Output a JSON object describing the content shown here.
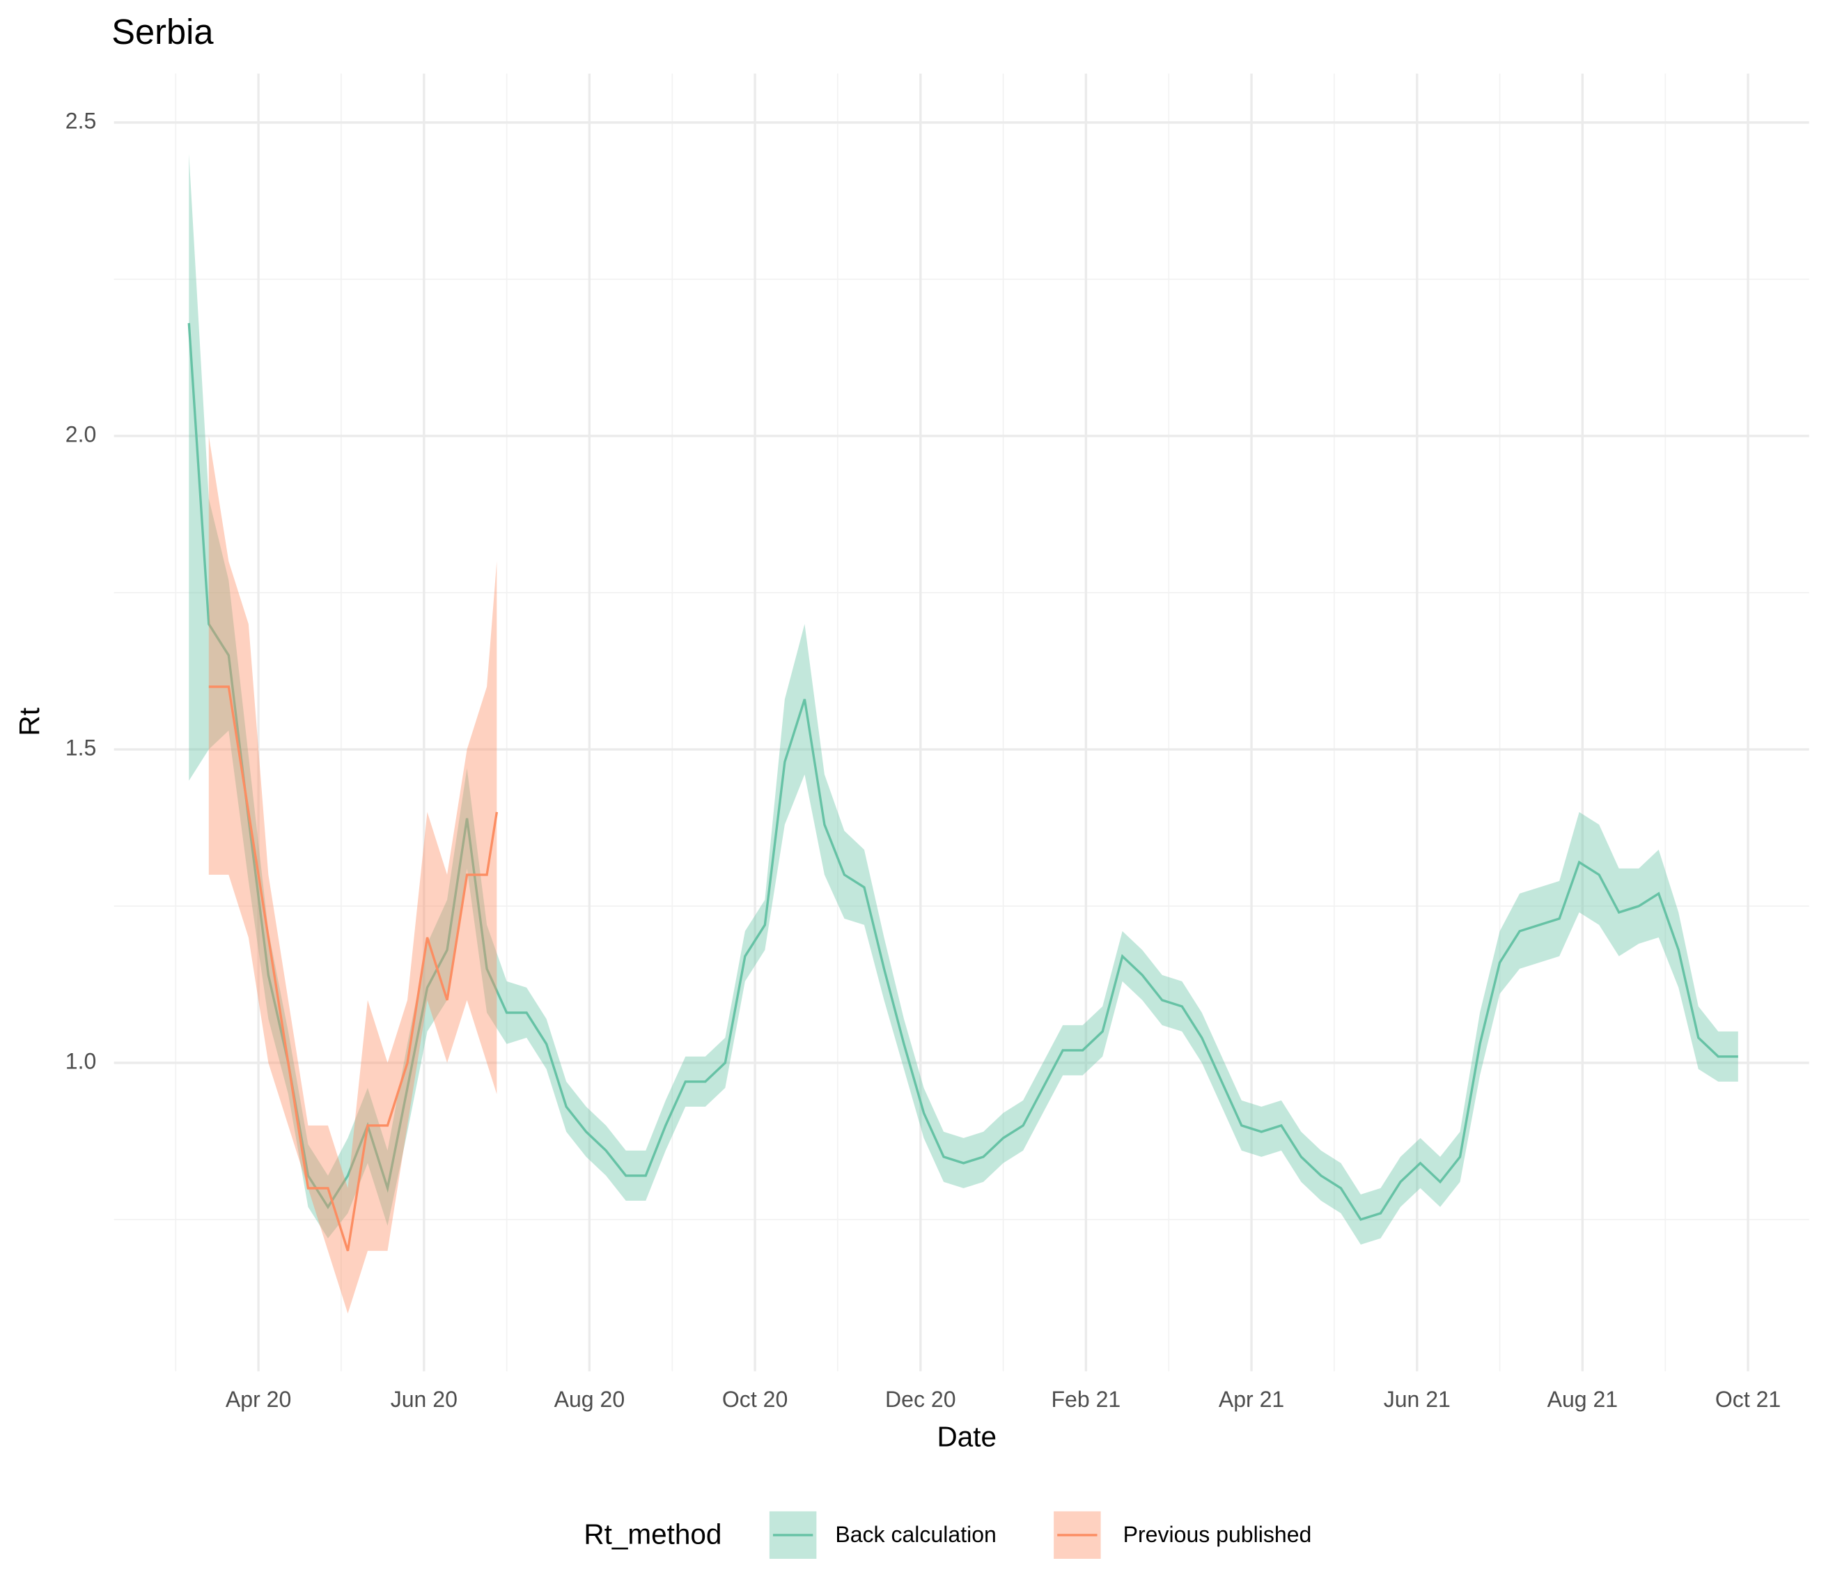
{
  "chart_data": {
    "type": "line",
    "title": "Serbia",
    "x_label": "Date",
    "y_label": "Rt",
    "legend_title": "Rt_method",
    "legend_position": "bottom",
    "grid": true,
    "xlim": [
      2020.1045,
      2021.8115
    ],
    "ylim": [
      0.508,
      2.578
    ],
    "xticks": [
      {
        "value": 2020.25,
        "label": "Apr 20"
      },
      {
        "value": 2020.4167,
        "label": "Jun 20"
      },
      {
        "value": 2020.5833,
        "label": "Aug 20"
      },
      {
        "value": 2020.75,
        "label": "Oct 20"
      },
      {
        "value": 2020.9167,
        "label": "Dec 20"
      },
      {
        "value": 2021.0833,
        "label": "Feb 21"
      },
      {
        "value": 2021.25,
        "label": "Apr 21"
      },
      {
        "value": 2021.4167,
        "label": "Jun 21"
      },
      {
        "value": 2021.5833,
        "label": "Aug 21"
      },
      {
        "value": 2021.75,
        "label": "Oct 21"
      }
    ],
    "minor_xticks": [
      2020.1667,
      2020.3333,
      2020.5,
      2020.6667,
      2020.8333,
      2021.0,
      2021.1667,
      2021.3333,
      2021.5,
      2021.6667
    ],
    "yticks": [
      {
        "value": 1,
        "label": "1.0"
      },
      1.5,
      {
        "value": 2,
        "label": "2.0"
      },
      2.5
    ],
    "minor_yticks": [
      0.75,
      1.25,
      1.75,
      2.25
    ],
    "series": [
      {
        "name": "Back calculation",
        "color": "#66c2a5",
        "x": [
          2020.18,
          2020.2,
          2020.22,
          2020.24,
          2020.26,
          2020.28,
          2020.3,
          2020.32,
          2020.34,
          2020.36,
          2020.38,
          2020.4,
          2020.42,
          2020.44,
          2020.46,
          2020.48,
          2020.5,
          2020.52,
          2020.54,
          2020.56,
          2020.58,
          2020.6,
          2020.62,
          2020.64,
          2020.66,
          2020.68,
          2020.7,
          2020.72,
          2020.74,
          2020.76,
          2020.78,
          2020.8,
          2020.82,
          2020.84,
          2020.86,
          2020.88,
          2020.9,
          2020.92,
          2020.94,
          2020.96,
          2020.98,
          2021.0,
          2021.02,
          2021.04,
          2021.06,
          2021.08,
          2021.1,
          2021.12,
          2021.14,
          2021.16,
          2021.18,
          2021.2,
          2021.22,
          2021.24,
          2021.26,
          2021.28,
          2021.3,
          2021.32,
          2021.34,
          2021.36,
          2021.38,
          2021.4,
          2021.42,
          2021.44,
          2021.46,
          2021.48,
          2021.5,
          2021.52,
          2021.54,
          2021.56,
          2021.58,
          2021.6,
          2021.62,
          2021.64,
          2021.66,
          2021.68,
          2021.7,
          2021.72,
          2021.74
        ],
        "values": [
          2.18,
          1.7,
          1.65,
          1.39,
          1.14,
          1.0,
          0.82,
          0.77,
          0.82,
          0.9,
          0.8,
          0.96,
          1.12,
          1.18,
          1.39,
          1.15,
          1.08,
          1.08,
          1.03,
          0.93,
          0.89,
          0.86,
          0.82,
          0.82,
          0.9,
          0.97,
          0.97,
          1.0,
          1.17,
          1.22,
          1.48,
          1.58,
          1.38,
          1.3,
          1.28,
          1.15,
          1.03,
          0.92,
          0.85,
          0.84,
          0.85,
          0.88,
          0.9,
          0.96,
          1.02,
          1.02,
          1.05,
          1.17,
          1.14,
          1.1,
          1.09,
          1.04,
          0.97,
          0.9,
          0.89,
          0.9,
          0.85,
          0.82,
          0.8,
          0.75,
          0.76,
          0.81,
          0.84,
          0.81,
          0.85,
          1.03,
          1.16,
          1.21,
          1.22,
          1.23,
          1.32,
          1.3,
          1.24,
          1.25,
          1.27,
          1.18,
          1.04,
          1.01,
          1.01
        ],
        "lower": [
          1.45,
          1.5,
          1.53,
          1.29,
          1.07,
          0.95,
          0.77,
          0.72,
          0.76,
          0.84,
          0.74,
          0.89,
          1.05,
          1.1,
          1.31,
          1.08,
          1.03,
          1.04,
          0.99,
          0.89,
          0.85,
          0.82,
          0.78,
          0.78,
          0.86,
          0.93,
          0.93,
          0.96,
          1.13,
          1.18,
          1.38,
          1.46,
          1.3,
          1.23,
          1.22,
          1.1,
          0.99,
          0.88,
          0.81,
          0.8,
          0.81,
          0.84,
          0.86,
          0.92,
          0.98,
          0.98,
          1.01,
          1.13,
          1.1,
          1.06,
          1.05,
          1.0,
          0.93,
          0.86,
          0.85,
          0.86,
          0.81,
          0.78,
          0.76,
          0.71,
          0.72,
          0.77,
          0.8,
          0.77,
          0.81,
          0.98,
          1.11,
          1.15,
          1.16,
          1.17,
          1.24,
          1.22,
          1.17,
          1.19,
          1.2,
          1.12,
          0.99,
          0.97,
          0.97
        ],
        "upper": [
          2.45,
          1.9,
          1.77,
          1.49,
          1.21,
          1.05,
          0.87,
          0.82,
          0.88,
          0.96,
          0.86,
          1.03,
          1.19,
          1.26,
          1.47,
          1.22,
          1.13,
          1.12,
          1.07,
          0.97,
          0.93,
          0.9,
          0.86,
          0.86,
          0.94,
          1.01,
          1.01,
          1.04,
          1.21,
          1.26,
          1.58,
          1.7,
          1.46,
          1.37,
          1.34,
          1.2,
          1.07,
          0.96,
          0.89,
          0.88,
          0.89,
          0.92,
          0.94,
          1.0,
          1.06,
          1.06,
          1.09,
          1.21,
          1.18,
          1.14,
          1.13,
          1.08,
          1.01,
          0.94,
          0.93,
          0.94,
          0.89,
          0.86,
          0.84,
          0.79,
          0.8,
          0.85,
          0.88,
          0.85,
          0.89,
          1.08,
          1.21,
          1.27,
          1.28,
          1.29,
          1.4,
          1.38,
          1.31,
          1.31,
          1.34,
          1.24,
          1.09,
          1.05,
          1.05
        ]
      },
      {
        "name": "Previous published",
        "color": "#fc8d62",
        "x": [
          2020.2,
          2020.22,
          2020.24,
          2020.26,
          2020.28,
          2020.3,
          2020.32,
          2020.34,
          2020.36,
          2020.38,
          2020.4,
          2020.42,
          2020.44,
          2020.46,
          2020.48,
          2020.49
        ],
        "values": [
          1.6,
          1.6,
          1.4,
          1.2,
          1.0,
          0.8,
          0.8,
          0.7,
          0.9,
          0.9,
          1.0,
          1.2,
          1.1,
          1.3,
          1.3,
          1.4
        ],
        "lower": [
          1.3,
          1.3,
          1.2,
          1.0,
          0.9,
          0.8,
          0.7,
          0.6,
          0.7,
          0.7,
          0.9,
          1.1,
          1.0,
          1.1,
          1.0,
          0.95
        ],
        "upper": [
          2.0,
          1.8,
          1.7,
          1.3,
          1.1,
          0.9,
          0.9,
          0.8,
          1.1,
          1.0,
          1.1,
          1.4,
          1.3,
          1.5,
          1.6,
          1.8
        ]
      }
    ]
  }
}
